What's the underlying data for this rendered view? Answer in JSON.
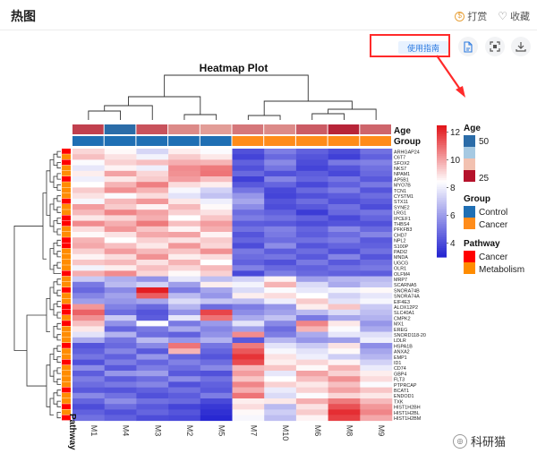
{
  "header": {
    "title": "热图",
    "tip_label": "打赏",
    "fav_label": "收藏",
    "tip_icon_glyph": "$"
  },
  "toolbar": {
    "guide_label": "使用指南"
  },
  "chart_data": {
    "type": "heatmap",
    "title": "Heatmap Plot",
    "columns": [
      "M1",
      "M4",
      "M3",
      "M2",
      "M5",
      "M7",
      "M10",
      "M6",
      "M8",
      "M9"
    ],
    "rows": [
      "ARHGAP24",
      "C6T7",
      "SFOX2",
      "NKS7",
      "NPAM1",
      "AP5B1",
      "MYO7B",
      "TCN1",
      "CYSTM1",
      "STX11",
      "SYNE2",
      "LRG1",
      "IPCEF1",
      "THBS4",
      "PFKFB3",
      "CHD7",
      "NPL2",
      "S100P",
      "PADI2",
      "MNDA",
      "UGCG",
      "OLR1",
      "OLFM4",
      "MRP7",
      "SCARNA5",
      "SNORA74B",
      "SNORA74A",
      "EIF4E3",
      "ALOX12P2",
      "SLC40A1",
      "CMPK2",
      "MX1",
      "EREG",
      "SNORD118-20",
      "LDLR",
      "HSPA1B",
      "ANXA2",
      "EMP1",
      "ID1",
      "CD74",
      "GBP4",
      "FLT3",
      "PTPRCAP",
      "BCAT1",
      "ENDOD1",
      "TXK",
      "HIST1H2BH",
      "HIST1H2BL",
      "HIST1H2BM"
    ],
    "column_annotations": {
      "Age": [
        30,
        45,
        32,
        38,
        40,
        36,
        38,
        33,
        27,
        34
      ],
      "Group": [
        "Control",
        "Control",
        "Control",
        "Control",
        "Control",
        "Cancer",
        "Cancer",
        "Cancer",
        "Cancer",
        "Cancer"
      ]
    },
    "row_annotations": {
      "Pathway": [
        "Cancer",
        "Metabolism",
        "Cancer",
        "Metabolism",
        "Metabolism",
        "Cancer",
        "Metabolism",
        "Metabolism",
        "Metabolism",
        "Cancer",
        "Metabolism",
        "Metabolism",
        "Cancer",
        "Cancer",
        "Metabolism",
        "Metabolism",
        "Cancer",
        "Cancer",
        "Metabolism",
        "Metabolism",
        "Metabolism",
        "Metabolism",
        "Cancer",
        "Metabolism",
        "Metabolism",
        "Cancer",
        "Metabolism",
        "Metabolism",
        "Cancer",
        "Cancer",
        "Metabolism",
        "Cancer",
        "Metabolism",
        "Metabolism",
        "Metabolism",
        "Cancer",
        "Metabolism",
        "Metabolism",
        "Cancer",
        "Metabolism",
        "Metabolism",
        "Metabolism",
        "Metabolism",
        "Cancer",
        "Metabolism",
        "Metabolism",
        "Cancer",
        "Metabolism",
        "Cancer"
      ]
    },
    "color_scale": {
      "min": 3,
      "max": 12.5,
      "low_color": "#2020d0",
      "mid_color": "#ffffff",
      "high_color": "#e2171c",
      "ticks": [
        4,
        6,
        8,
        10,
        12
      ]
    },
    "values": [
      [
        9.2,
        8.6,
        7.5,
        8.8,
        8.4,
        4.2,
        5.3,
        4.6,
        4.1,
        5.0
      ],
      [
        9.6,
        9.0,
        8.2,
        9.4,
        8.9,
        3.9,
        4.8,
        4.3,
        3.8,
        4.6
      ],
      [
        8.4,
        9.3,
        9.6,
        9.9,
        9.8,
        4.6,
        5.6,
        4.1,
        5.2,
        5.4
      ],
      [
        7.9,
        8.7,
        8.1,
        10.5,
        10.8,
        4.2,
        5.1,
        3.9,
        4.3,
        5.0
      ],
      [
        8.8,
        10.1,
        9.2,
        10.4,
        10.9,
        4.8,
        4.2,
        4.5,
        4.0,
        4.8
      ],
      [
        8.1,
        8.9,
        9.4,
        10.2,
        9.6,
        3.8,
        5.5,
        4.7,
        5.1,
        4.4
      ],
      [
        8.5,
        9.8,
        10.7,
        9.1,
        8.8,
        4.4,
        4.7,
        4.0,
        4.6,
        5.2
      ],
      [
        9.4,
        10.4,
        9.8,
        8.3,
        7.4,
        5.1,
        4.0,
        4.8,
        5.3,
        4.3
      ],
      [
        9.0,
        8.4,
        9.1,
        7.8,
        7.0,
        5.9,
        3.9,
        4.2,
        4.5,
        4.9
      ],
      [
        8.3,
        9.7,
        10.3,
        8.9,
        8.1,
        6.3,
        4.3,
        4.9,
        4.2,
        4.5
      ],
      [
        10.2,
        9.4,
        8.7,
        9.7,
        8.6,
        5.7,
        4.1,
        4.4,
        5.0,
        4.1
      ],
      [
        9.7,
        10.6,
        10.1,
        9.3,
        9.0,
        4.9,
        4.6,
        3.7,
        4.8,
        5.1
      ],
      [
        8.9,
        9.2,
        9.9,
        8.5,
        9.5,
        5.3,
        5.0,
        4.6,
        4.0,
        4.7
      ],
      [
        10.5,
        9.9,
        10.8,
        9.6,
        10.2,
        4.5,
        4.4,
        4.1,
        4.3,
        4.2
      ],
      [
        9.1,
        10.3,
        9.5,
        8.7,
        9.9,
        5.0,
        5.4,
        4.7,
        5.6,
        4.8
      ],
      [
        8.6,
        9.0,
        10.0,
        10.1,
        8.7,
        4.3,
        5.2,
        4.5,
        4.9,
        5.5
      ],
      [
        9.8,
        8.5,
        9.3,
        9.0,
        9.4,
        4.7,
        4.9,
        5.0,
        5.3,
        4.4
      ],
      [
        10.0,
        9.6,
        8.9,
        10.3,
        9.2,
        4.1,
        5.7,
        4.3,
        4.7,
        4.6
      ],
      [
        9.3,
        10.2,
        9.7,
        9.5,
        10.4,
        5.2,
        4.5,
        4.9,
        4.2,
        5.0
      ],
      [
        8.7,
        9.1,
        10.4,
        8.8,
        9.1,
        4.9,
        5.1,
        4.4,
        5.5,
        4.3
      ],
      [
        9.5,
        9.7,
        9.0,
        9.8,
        8.5,
        4.6,
        4.2,
        5.2,
        4.4,
        4.9
      ],
      [
        8.2,
        8.8,
        9.6,
        9.2,
        9.7,
        5.4,
        4.8,
        4.6,
        5.0,
        5.2
      ],
      [
        9.9,
        10.5,
        9.2,
        8.6,
        9.3,
        4.0,
        5.3,
        4.8,
        4.6,
        4.5
      ],
      [
        7.2,
        6.5,
        5.8,
        7.9,
        6.9,
        7.4,
        8.7,
        6.1,
        6.7,
        6.8
      ],
      [
        5.2,
        6.8,
        7.4,
        6.1,
        8.8,
        8.2,
        9.8,
        7.6,
        6.4,
        7.1
      ],
      [
        4.8,
        5.6,
        12.4,
        5.3,
        6.3,
        7.6,
        8.4,
        7.9,
        8.2,
        8.6
      ],
      [
        5.5,
        6.2,
        11.3,
        6.8,
        5.9,
        8.8,
        9.1,
        8.5,
        7.4,
        7.9
      ],
      [
        6.1,
        5.9,
        6.3,
        7.6,
        7.1,
        6.9,
        8.1,
        9.4,
        7.8,
        8.3
      ],
      [
        10.3,
        5.4,
        4.8,
        6.7,
        4.9,
        5.3,
        5.9,
        8.8,
        9.5,
        7.2
      ],
      [
        11.2,
        4.9,
        4.3,
        5.8,
        11.7,
        5.7,
        6.2,
        6.8,
        7.6,
        6.9
      ],
      [
        10.4,
        7.2,
        4.5,
        7.9,
        10.9,
        6.4,
        7.0,
        5.2,
        6.3,
        6.6
      ],
      [
        9.6,
        5.8,
        8.4,
        5.2,
        6.0,
        7.8,
        5.6,
        10.6,
        8.9,
        5.9
      ],
      [
        8.9,
        4.7,
        5.2,
        6.4,
        5.5,
        6.1,
        4.9,
        9.8,
        8.4,
        6.4
      ],
      [
        7.8,
        6.6,
        4.9,
        4.6,
        5.8,
        10.5,
        5.3,
        6.4,
        7.9,
        7.7
      ],
      [
        6.4,
        5.1,
        6.8,
        5.9,
        6.6,
        4.4,
        6.7,
        5.9,
        6.1,
        8.1
      ],
      [
        4.3,
        4.8,
        5.6,
        10.9,
        5.1,
        10.8,
        7.8,
        7.2,
        9.0,
        5.7
      ],
      [
        4.6,
        5.5,
        4.4,
        9.8,
        4.7,
        11.4,
        8.3,
        7.8,
        8.6,
        6.3
      ],
      [
        5.1,
        4.6,
        5.9,
        4.7,
        4.3,
        12.0,
        9.0,
        8.1,
        7.3,
        6.7
      ],
      [
        4.2,
        5.3,
        4.7,
        5.4,
        4.9,
        11.6,
        8.8,
        9.2,
        8.7,
        7.4
      ],
      [
        5.7,
        4.4,
        5.3,
        4.9,
        5.6,
        9.7,
        9.5,
        8.6,
        9.8,
        8.0
      ],
      [
        4.5,
        5.9,
        6.1,
        4.4,
        4.2,
        10.2,
        7.9,
        10.1,
        9.3,
        8.8
      ],
      [
        5.3,
        4.5,
        4.9,
        5.7,
        5.0,
        9.5,
        8.5,
        9.6,
        10.4,
        9.1
      ],
      [
        4.9,
        5.2,
        5.5,
        4.2,
        4.6,
        10.6,
        9.3,
        8.9,
        9.6,
        8.4
      ],
      [
        4.4,
        4.3,
        4.6,
        5.0,
        4.4,
        9.9,
        8.0,
        9.3,
        10.1,
        9.5
      ],
      [
        5.6,
        5.0,
        4.2,
        4.5,
        5.3,
        10.9,
        7.6,
        8.4,
        9.2,
        8.9
      ],
      [
        4.7,
        5.7,
        5.0,
        4.8,
        4.0,
        8.8,
        8.9,
        9.9,
        10.8,
        9.7
      ],
      [
        4.1,
        4.9,
        4.4,
        3.9,
        3.6,
        9.1,
        6.8,
        9.0,
        11.5,
        10.3
      ],
      [
        4.6,
        4.2,
        4.7,
        4.3,
        3.4,
        8.6,
        7.3,
        9.4,
        12.1,
        10.6
      ],
      [
        5.0,
        4.6,
        4.1,
        4.0,
        3.2,
        8.3,
        6.9,
        8.7,
        11.8,
        10.0
      ]
    ],
    "legends": {
      "age": {
        "title": "Age",
        "ticks": [
          "50",
          "25"
        ]
      },
      "group": {
        "title": "Group",
        "items": [
          {
            "label": "Control",
            "color": "#1f6fb4"
          },
          {
            "label": "Cancer",
            "color": "#ff8c1a"
          }
        ]
      },
      "pathway": {
        "title": "Pathway",
        "items": [
          {
            "label": "Cancer",
            "color": "#ff0000"
          },
          {
            "label": "Metabolism",
            "color": "#ff8c00"
          }
        ]
      }
    },
    "annotation_labels": {
      "age": "Age",
      "group": "Group",
      "pathway": "Pathway"
    }
  },
  "watermark": {
    "text": "科研猫"
  },
  "colors": {
    "accent": "#2d7be0",
    "highlight_border": "#ff2a2a",
    "age_old": "#b5122b",
    "age_young": "#d4e6f3"
  }
}
